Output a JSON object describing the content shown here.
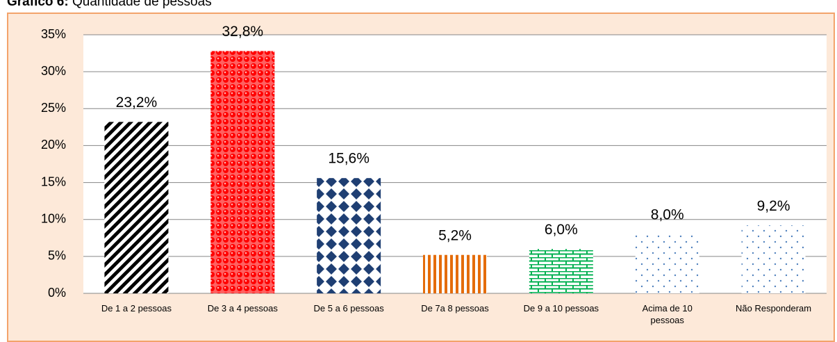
{
  "chart_data": {
    "type": "bar",
    "figure_label": "Gráfico 6:",
    "title": "Quantidade de pessoas",
    "categories": [
      "De 1 a 2 pessoas",
      "De 3 a 4 pessoas",
      "De 5 a 6 pessoas",
      "De 7a 8 pessoas",
      "De 9 a 10 pessoas",
      "Acima de 10 pessoas",
      "Não Responderam"
    ],
    "values": [
      23.2,
      32.8,
      15.6,
      5.2,
      6.0,
      8.0,
      9.2
    ],
    "value_labels": [
      "23,2%",
      "32,8%",
      "15,6%",
      "5,2%",
      "6,0%",
      "8,0%",
      "9,2%"
    ],
    "colors": [
      "#000000",
      "#ff0000",
      "#1f3f73",
      "#e46c0a",
      "#00b050",
      "#4f81bd",
      "#4f81bd"
    ],
    "ylim": [
      0,
      35
    ],
    "yticks": [
      {
        "value": 0,
        "label": "0%"
      },
      {
        "value": 5,
        "label": "5%"
      },
      {
        "value": 10,
        "label": "10%"
      },
      {
        "value": 15,
        "label": "15%"
      },
      {
        "value": 20,
        "label": "20%"
      },
      {
        "value": 25,
        "label": "25%"
      },
      {
        "value": 30,
        "label": "30%"
      },
      {
        "value": 35,
        "label": "35%"
      }
    ],
    "grid": true
  }
}
